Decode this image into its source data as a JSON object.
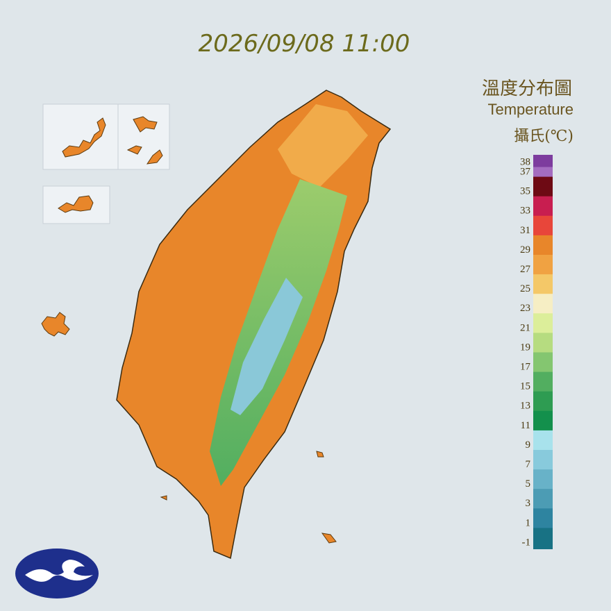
{
  "header": {
    "timestamp": "2026/09/08 11:00"
  },
  "legend": {
    "title_zh": "溫度分布圖",
    "title_en": "Temperature",
    "unit": "攝氏(℃)",
    "ticks": [
      38,
      37,
      35,
      33,
      31,
      29,
      27,
      25,
      23,
      21,
      19,
      17,
      15,
      13,
      11,
      9,
      7,
      5,
      3,
      1,
      -1
    ],
    "colors": [
      "#7d3c9e",
      "#a46cc0",
      "#6e0a14",
      "#c81e50",
      "#e8463a",
      "#e8862a",
      "#f0a242",
      "#f4c868",
      "#f6eec4",
      "#dcee9a",
      "#b6dc80",
      "#84c670",
      "#52ae60",
      "#2e9c52",
      "#13904c",
      "#a8e2ec",
      "#88cadc",
      "#68b2c8",
      "#4c9cb4",
      "#2e84a0",
      "#187284"
    ]
  }
}
